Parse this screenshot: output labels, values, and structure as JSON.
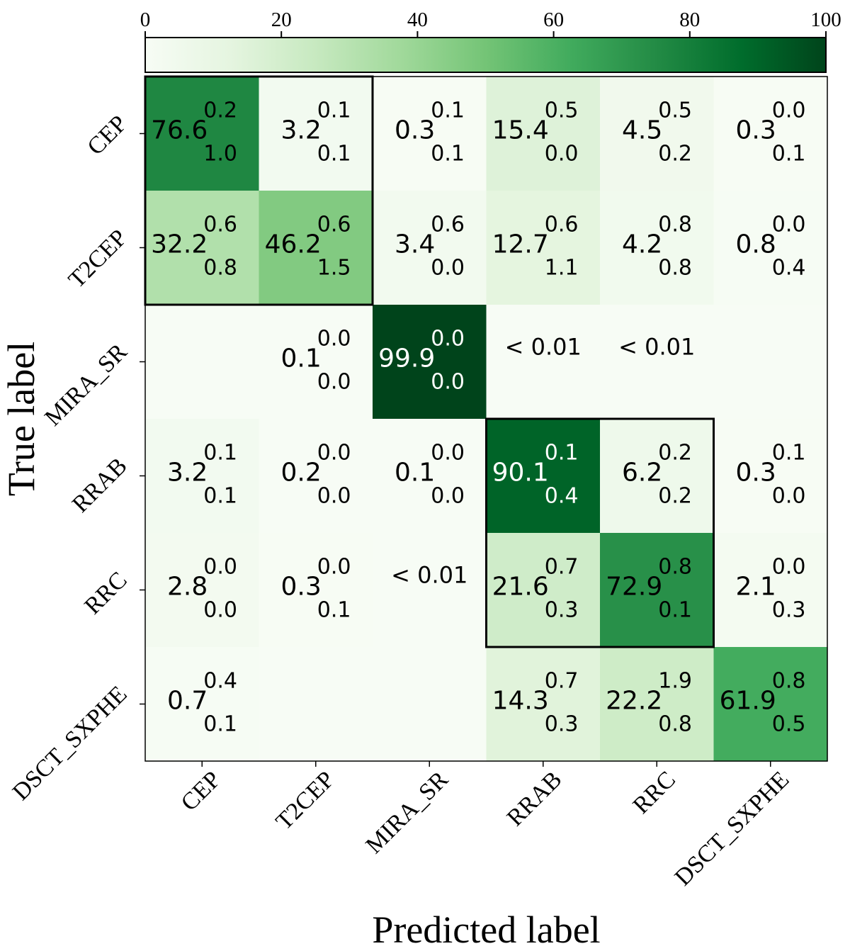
{
  "chart_data": {
    "type": "heatmap",
    "title": "",
    "xlabel": "Predicted label",
    "ylabel": "True label",
    "x_categories": [
      "CEP",
      "T2CEP",
      "MIRA_SR",
      "RRAB",
      "RRC",
      "DSCT_SXPHE"
    ],
    "y_categories": [
      "CEP",
      "T2CEP",
      "MIRA_SR",
      "RRAB",
      "RRC",
      "DSCT_SXPHE"
    ],
    "values": [
      [
        76.6,
        3.2,
        0.3,
        15.4,
        4.5,
        0.3
      ],
      [
        32.2,
        46.2,
        3.4,
        12.7,
        4.2,
        0.8
      ],
      [
        null,
        0.1,
        99.9,
        "< 0.01",
        "< 0.01",
        null
      ],
      [
        3.2,
        0.2,
        0.1,
        90.1,
        6.2,
        0.3
      ],
      [
        2.8,
        0.3,
        "< 0.01",
        21.6,
        72.9,
        2.1
      ],
      [
        0.7,
        null,
        null,
        14.3,
        22.2,
        61.9
      ]
    ],
    "upper_errors": [
      [
        "0.2",
        "0.1",
        "0.1",
        "0.5",
        "0.5",
        "0.0"
      ],
      [
        "0.6",
        "0.6",
        "0.6",
        "0.6",
        "0.8",
        "0.0"
      ],
      [
        null,
        "0.0",
        "0.0",
        null,
        null,
        null
      ],
      [
        "0.1",
        "0.0",
        "0.0",
        "0.1",
        "0.2",
        "0.1"
      ],
      [
        "0.0",
        "0.0",
        null,
        "0.7",
        "0.8",
        "0.0"
      ],
      [
        "0.4",
        null,
        null,
        "0.7",
        "1.9",
        "0.8"
      ]
    ],
    "lower_errors": [
      [
        "1.0",
        "0.1",
        "0.1",
        "0.0",
        "0.2",
        "0.1"
      ],
      [
        "0.8",
        "1.5",
        "0.0",
        "1.1",
        "0.8",
        "0.4"
      ],
      [
        null,
        "0.0",
        "0.0",
        null,
        null,
        null
      ],
      [
        "0.1",
        "0.0",
        "0.0",
        "0.4",
        "0.2",
        "0.0"
      ],
      [
        "0.0",
        "0.1",
        null,
        "0.3",
        "0.1",
        "0.3"
      ],
      [
        "0.1",
        null,
        null,
        "0.3",
        "0.8",
        "0.5"
      ]
    ],
    "colorbar": {
      "ticks": [
        0,
        20,
        40,
        60,
        80,
        100
      ],
      "range": [
        0,
        100
      ],
      "placement": "top",
      "colormap": "Greens",
      "colors": [
        "#f7fcf5",
        "#e5f5e0",
        "#c7e9c0",
        "#a1d99b",
        "#74c476",
        "#41ab5d",
        "#238b45",
        "#006d2c",
        "#00441b"
      ]
    },
    "grid": false,
    "highlight_boxes": [
      {
        "rows": [
          0,
          1
        ],
        "cols": [
          0,
          1
        ]
      },
      {
        "rows": [
          3,
          4
        ],
        "cols": [
          3,
          4
        ]
      }
    ]
  }
}
